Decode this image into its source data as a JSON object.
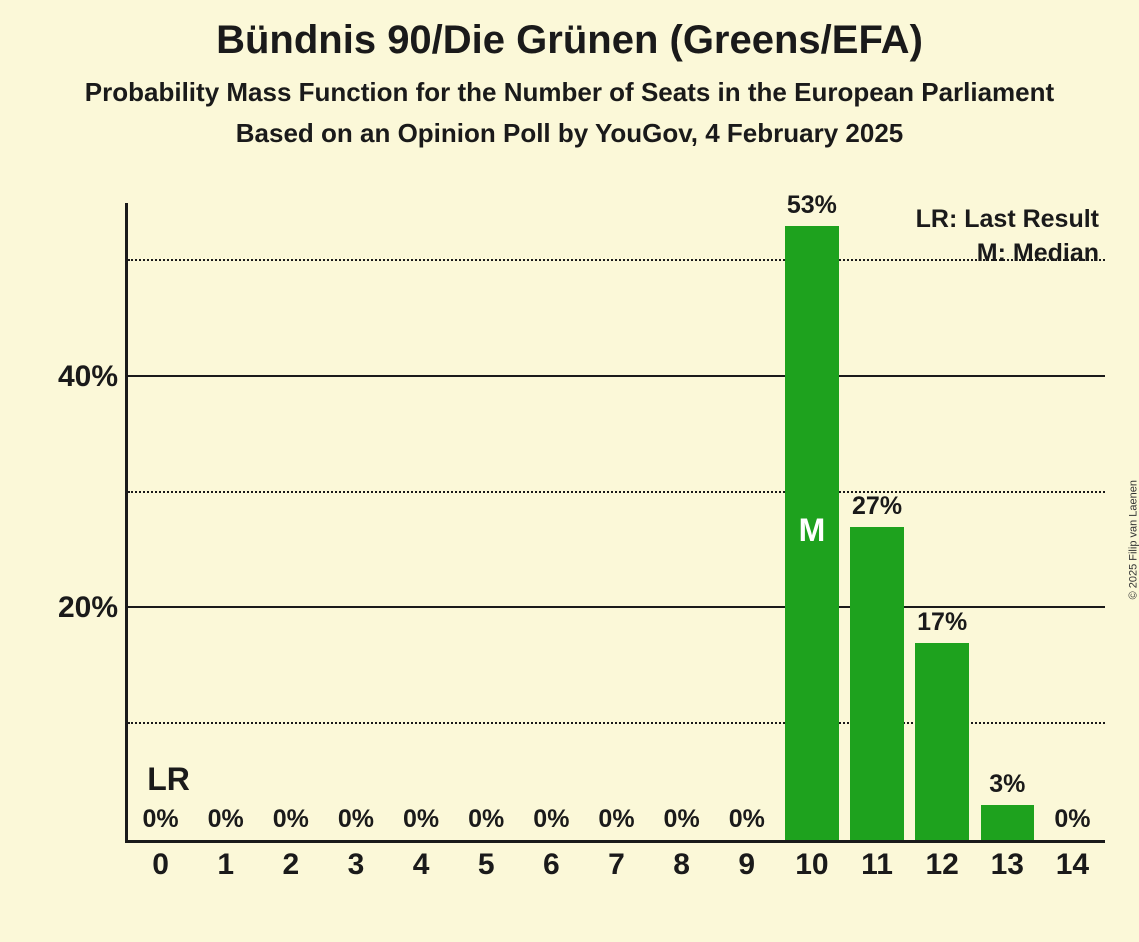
{
  "title": "Bündnis 90/Die Grünen (Greens/EFA)",
  "subtitle1": "Probability Mass Function for the Number of Seats in the European Parliament",
  "subtitle2": "Based on an Opinion Poll by YouGov, 4 February 2025",
  "copyright": "© 2025 Filip van Laenen",
  "legend": {
    "lr": "LR: Last Result",
    "median": "M: Median"
  },
  "chart": {
    "type": "bar",
    "background_color": "#fbf8d8",
    "bar_color": "#1ea21e",
    "axis_color": "#1a1a1a",
    "text_color": "#1a1a1a",
    "median_text_color": "#ffffff",
    "title_fontsize": 40,
    "subtitle_fontsize": 26,
    "axis_label_fontsize": 30,
    "bar_label_fontsize": 25,
    "legend_fontsize": 25,
    "x_categories": [
      "0",
      "1",
      "2",
      "3",
      "4",
      "5",
      "6",
      "7",
      "8",
      "9",
      "10",
      "11",
      "12",
      "13",
      "14"
    ],
    "values": [
      0,
      0,
      0,
      0,
      0,
      0,
      0,
      0,
      0,
      0,
      53,
      27,
      17,
      3,
      0
    ],
    "value_labels": [
      "0%",
      "0%",
      "0%",
      "0%",
      "0%",
      "0%",
      "0%",
      "0%",
      "0%",
      "0%",
      "53%",
      "27%",
      "17%",
      "3%",
      "0%"
    ],
    "y_ticks_major": [
      20,
      40
    ],
    "y_ticks_major_labels": [
      "20%",
      "40%"
    ],
    "y_ticks_minor": [
      10,
      30,
      50
    ],
    "ylim": [
      0,
      55
    ],
    "bar_width_ratio": 0.82,
    "median_index": 10,
    "median_marker": "M",
    "lr_index": 0,
    "lr_marker": "LR",
    "axis_width": 3,
    "gridline_width": 2
  }
}
